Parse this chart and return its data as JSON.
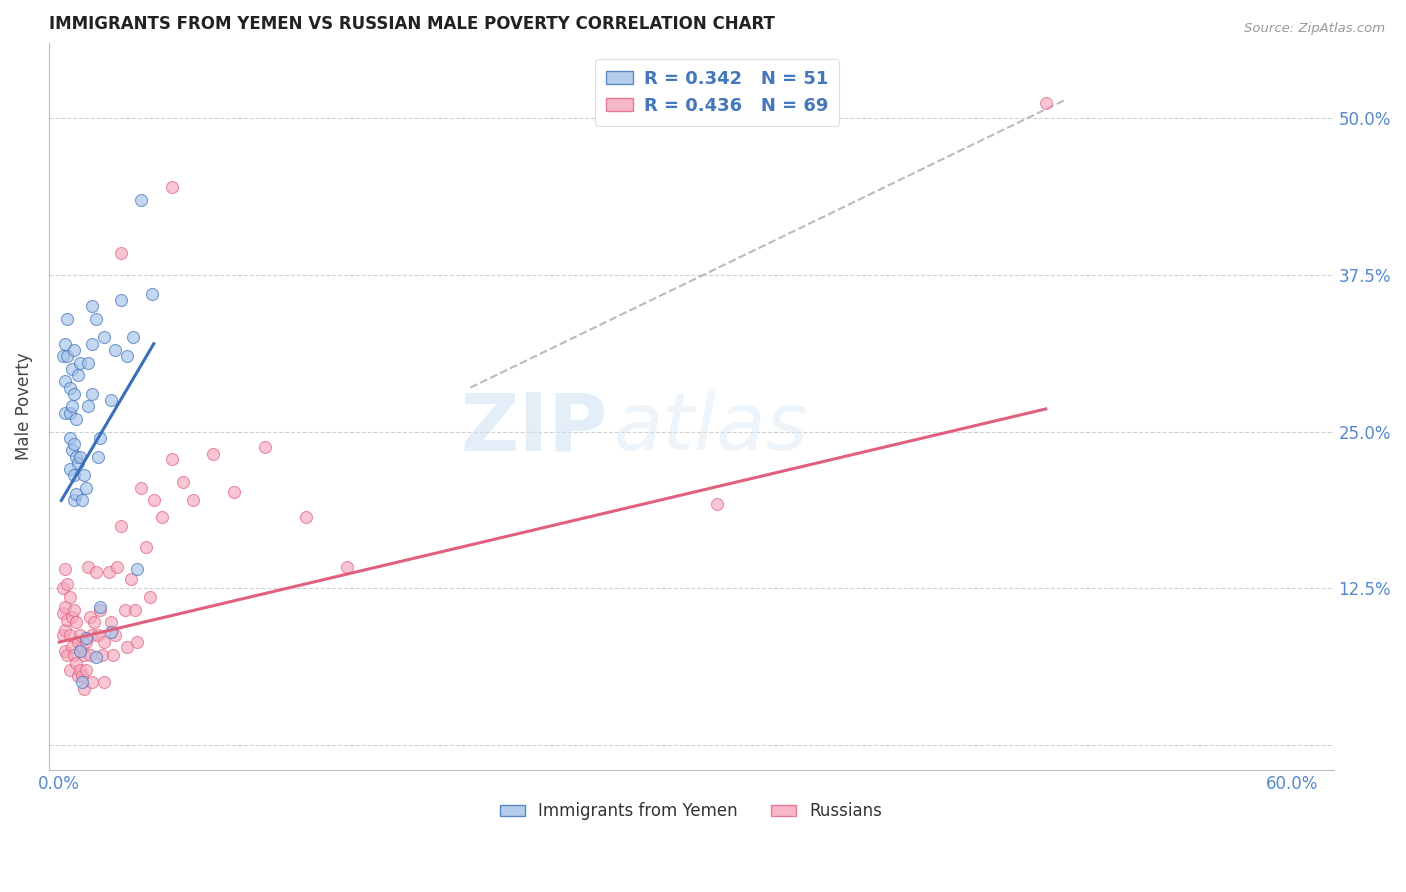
{
  "title": "IMMIGRANTS FROM YEMEN VS RUSSIAN MALE POVERTY CORRELATION CHART",
  "source": "Source: ZipAtlas.com",
  "ylabel": "Male Poverty",
  "y_tick_labels": [
    "",
    "12.5%",
    "25.0%",
    "37.5%",
    "50.0%"
  ],
  "y_tick_values": [
    0.0,
    0.125,
    0.25,
    0.375,
    0.5
  ],
  "xlim": [
    -0.005,
    0.62
  ],
  "ylim": [
    -0.02,
    0.56
  ],
  "legend_label_1": "R = 0.342   N = 51",
  "legend_label_2": "R = 0.436   N = 69",
  "legend_bottom_label_1": "Immigrants from Yemen",
  "legend_bottom_label_2": "Russians",
  "blue_color": "#a4c2e8",
  "pink_color": "#f4a7bc",
  "blue_line_color": "#3a6fba",
  "pink_line_color": "#e0607e",
  "blue_scatter": [
    [
      0.002,
      0.31
    ],
    [
      0.003,
      0.32
    ],
    [
      0.003,
      0.29
    ],
    [
      0.003,
      0.265
    ],
    [
      0.004,
      0.34
    ],
    [
      0.004,
      0.31
    ],
    [
      0.005,
      0.285
    ],
    [
      0.005,
      0.265
    ],
    [
      0.005,
      0.245
    ],
    [
      0.005,
      0.22
    ],
    [
      0.006,
      0.3
    ],
    [
      0.006,
      0.27
    ],
    [
      0.006,
      0.235
    ],
    [
      0.007,
      0.315
    ],
    [
      0.007,
      0.28
    ],
    [
      0.007,
      0.24
    ],
    [
      0.007,
      0.215
    ],
    [
      0.007,
      0.195
    ],
    [
      0.008,
      0.26
    ],
    [
      0.008,
      0.23
    ],
    [
      0.008,
      0.2
    ],
    [
      0.009,
      0.295
    ],
    [
      0.009,
      0.225
    ],
    [
      0.01,
      0.305
    ],
    [
      0.01,
      0.23
    ],
    [
      0.011,
      0.195
    ],
    [
      0.012,
      0.215
    ],
    [
      0.013,
      0.205
    ],
    [
      0.014,
      0.305
    ],
    [
      0.014,
      0.27
    ],
    [
      0.016,
      0.35
    ],
    [
      0.016,
      0.32
    ],
    [
      0.016,
      0.28
    ],
    [
      0.018,
      0.34
    ],
    [
      0.019,
      0.23
    ],
    [
      0.02,
      0.245
    ],
    [
      0.022,
      0.325
    ],
    [
      0.025,
      0.275
    ],
    [
      0.027,
      0.315
    ],
    [
      0.03,
      0.355
    ],
    [
      0.033,
      0.31
    ],
    [
      0.036,
      0.325
    ],
    [
      0.04,
      0.435
    ],
    [
      0.045,
      0.36
    ],
    [
      0.01,
      0.075
    ],
    [
      0.011,
      0.05
    ],
    [
      0.013,
      0.085
    ],
    [
      0.018,
      0.07
    ],
    [
      0.02,
      0.11
    ],
    [
      0.025,
      0.09
    ],
    [
      0.038,
      0.14
    ]
  ],
  "pink_scatter": [
    [
      0.002,
      0.125
    ],
    [
      0.002,
      0.105
    ],
    [
      0.002,
      0.088
    ],
    [
      0.003,
      0.14
    ],
    [
      0.003,
      0.11
    ],
    [
      0.003,
      0.092
    ],
    [
      0.003,
      0.075
    ],
    [
      0.004,
      0.128
    ],
    [
      0.004,
      0.1
    ],
    [
      0.004,
      0.072
    ],
    [
      0.005,
      0.118
    ],
    [
      0.005,
      0.088
    ],
    [
      0.005,
      0.06
    ],
    [
      0.006,
      0.102
    ],
    [
      0.006,
      0.078
    ],
    [
      0.007,
      0.108
    ],
    [
      0.007,
      0.072
    ],
    [
      0.008,
      0.098
    ],
    [
      0.008,
      0.065
    ],
    [
      0.009,
      0.082
    ],
    [
      0.009,
      0.055
    ],
    [
      0.01,
      0.088
    ],
    [
      0.01,
      0.06
    ],
    [
      0.011,
      0.078
    ],
    [
      0.011,
      0.055
    ],
    [
      0.012,
      0.072
    ],
    [
      0.012,
      0.045
    ],
    [
      0.013,
      0.082
    ],
    [
      0.013,
      0.06
    ],
    [
      0.014,
      0.142
    ],
    [
      0.015,
      0.102
    ],
    [
      0.015,
      0.072
    ],
    [
      0.016,
      0.088
    ],
    [
      0.016,
      0.05
    ],
    [
      0.017,
      0.098
    ],
    [
      0.018,
      0.138
    ],
    [
      0.019,
      0.088
    ],
    [
      0.02,
      0.108
    ],
    [
      0.021,
      0.072
    ],
    [
      0.022,
      0.082
    ],
    [
      0.022,
      0.05
    ],
    [
      0.024,
      0.138
    ],
    [
      0.025,
      0.098
    ],
    [
      0.026,
      0.072
    ],
    [
      0.027,
      0.088
    ],
    [
      0.028,
      0.142
    ],
    [
      0.03,
      0.175
    ],
    [
      0.032,
      0.108
    ],
    [
      0.033,
      0.078
    ],
    [
      0.035,
      0.132
    ],
    [
      0.037,
      0.108
    ],
    [
      0.038,
      0.082
    ],
    [
      0.04,
      0.205
    ],
    [
      0.042,
      0.158
    ],
    [
      0.044,
      0.118
    ],
    [
      0.046,
      0.195
    ],
    [
      0.05,
      0.182
    ],
    [
      0.055,
      0.228
    ],
    [
      0.06,
      0.21
    ],
    [
      0.065,
      0.195
    ],
    [
      0.075,
      0.232
    ],
    [
      0.085,
      0.202
    ],
    [
      0.1,
      0.238
    ],
    [
      0.12,
      0.182
    ],
    [
      0.14,
      0.142
    ],
    [
      0.32,
      0.192
    ],
    [
      0.48,
      0.512
    ],
    [
      0.03,
      0.392
    ],
    [
      0.055,
      0.445
    ]
  ],
  "blue_line_x": [
    0.001,
    0.046
  ],
  "blue_line_y": [
    0.195,
    0.32
  ],
  "pink_line_x": [
    0.0,
    0.48
  ],
  "pink_line_y": [
    0.082,
    0.268
  ],
  "dash_line_x": [
    0.2,
    0.49
  ],
  "dash_line_y": [
    0.285,
    0.515
  ],
  "watermark_zip": "ZIP",
  "watermark_atlas": "atlas",
  "background_color": "#ffffff"
}
